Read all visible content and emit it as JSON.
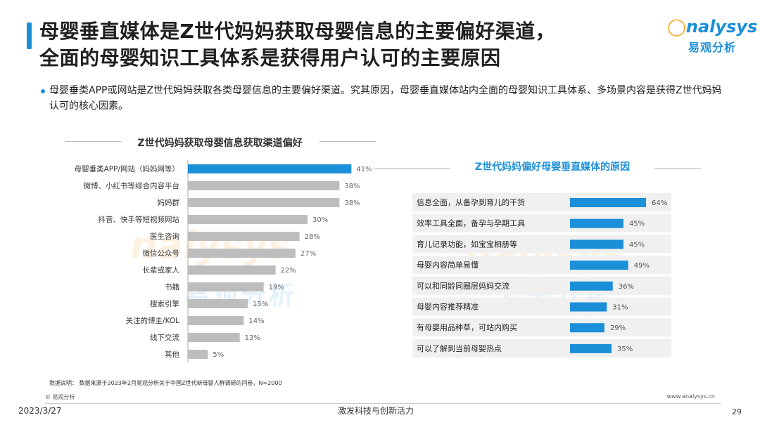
{
  "header": {
    "title_line1": "母婴垂直媒体是Z世代妈妈获取母婴信息的主要偏好渠道，",
    "title_line2": "全面的母婴知识工具体系是获得用户认可的主要原因",
    "logo_en": "nalysys",
    "logo_cn": "易观分析",
    "accent_color": "#1b8fd8"
  },
  "summary": "母婴垂类APP或网站是Z世代妈妈获取各类母婴信息的主要偏好渠道。究其原因，母婴垂直媒体站内全面的母婴知识工具体系、多场景内容是获得Z世代妈妈认可的核心因素。",
  "watermark": {
    "en": "nalysys",
    "cn": "易观分析"
  },
  "chart_data": [
    {
      "type": "bar",
      "orientation": "horizontal",
      "title": "Z世代妈妈获取母婴信息获取渠道偏好",
      "categories": [
        "母婴垂类APP/网站（妈妈网等）",
        "微博、小红书等综合内容平台",
        "妈妈群",
        "抖音、快手等短视频网站",
        "医生咨询",
        "微信公众号",
        "长辈或家人",
        "书籍",
        "搜索引擎",
        "关注的博主/KOL",
        "线下交流",
        "其他"
      ],
      "values": [
        41,
        38,
        38,
        30,
        28,
        27,
        22,
        19,
        15,
        14,
        13,
        5
      ],
      "value_labels": [
        "41%",
        "38%",
        "38%",
        "30%",
        "28%",
        "27%",
        "22%",
        "19%",
        "15%",
        "14%",
        "13%",
        "5%"
      ],
      "unit": "%",
      "highlight_index": 0,
      "colors": {
        "highlight": "#1b8fd8",
        "default": "#bdbdbd"
      },
      "xlim": [
        0,
        45
      ]
    },
    {
      "type": "bar",
      "orientation": "horizontal",
      "title": "Z世代妈妈偏好母婴垂直媒体的原因",
      "categories": [
        "信息全面，从备孕到育儿的干货",
        "效率工具全面，备孕与孕期工具",
        "育儿记录功能，如宝宝相册等",
        "母婴内容简单易懂",
        "可以和同龄同圈层妈妈交流",
        "母婴内容推荐精准",
        "有母婴用品种草，可站内购买",
        "可以了解到当前母婴热点"
      ],
      "values": [
        64,
        45,
        45,
        49,
        36,
        31,
        29,
        35
      ],
      "value_labels": [
        "64%",
        "45%",
        "45%",
        "49%",
        "36%",
        "31%",
        "29%",
        "35%"
      ],
      "unit": "%",
      "colors": {
        "bar": "#1b8fd8",
        "row_background": "#f0f0f0"
      },
      "xlim": [
        0,
        70
      ]
    }
  ],
  "footer": {
    "source": "数据说明：  数据来源于2023年2月易观分析关于中国Z世代新母婴人群调研的问卷，N=2000",
    "copyright": "© 易观分析",
    "site": "www.analysys.cn",
    "date": "2023/3/27",
    "slogan": "激发科技与创新活力",
    "page_number": "29"
  }
}
